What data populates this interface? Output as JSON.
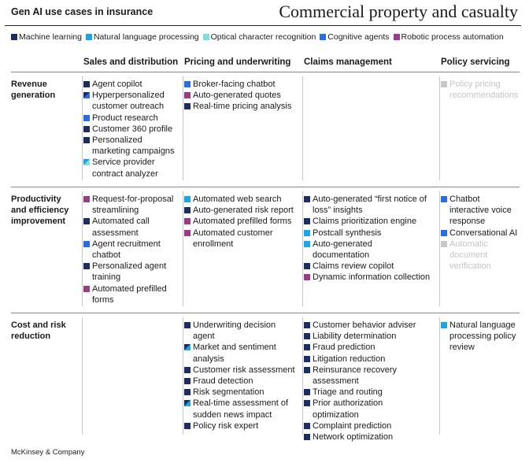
{
  "header": {
    "left_title": "Gen AI use cases in insurance",
    "right_title": "Commercial property and casualty"
  },
  "colors": {
    "machine_learning": "#1b2d63",
    "nlp": "#1fa5e6",
    "ocr": "#7fdfdc",
    "cognitive_agents": "#2a6de0",
    "rpa": "#9b3a86",
    "faded": "#c8c8c8"
  },
  "legend": [
    {
      "key": "machine_learning",
      "label": "Machine learning"
    },
    {
      "key": "nlp",
      "label": "Natural language processing"
    },
    {
      "key": "ocr",
      "label": "Optical character recognition"
    },
    {
      "key": "cognitive_agents",
      "label": "Cognitive agents"
    },
    {
      "key": "rpa",
      "label": "Robotic process automation"
    }
  ],
  "columns": [
    "Sales and distribution",
    "Pricing and underwriting",
    "Claims management",
    "Policy servicing"
  ],
  "rows": [
    {
      "label": "Revenue generation",
      "cells": [
        [
          {
            "text": "Agent copilot",
            "color": "machine_learning"
          },
          {
            "text": "Hyperpersonalized customer outreach",
            "color": "machine_learning",
            "split": "cognitive_agents"
          },
          {
            "text": "Product research",
            "color": "cognitive_agents"
          },
          {
            "text": "Customer 360 profile",
            "color": "machine_learning"
          },
          {
            "text": "Personalized marketing campaigns",
            "color": "machine_learning"
          },
          {
            "text": "Service provider contract analyzer",
            "color": "nlp",
            "split": "ocr"
          }
        ],
        [
          {
            "text": "Broker-facing chatbot",
            "color": "cognitive_agents"
          },
          {
            "text": "Auto-generated quotes",
            "color": "rpa"
          },
          {
            "text": "Real-time pricing analysis",
            "color": "machine_learning"
          }
        ],
        [],
        [
          {
            "text": "Policy pricing recommendations",
            "color": "faded",
            "faded": true
          }
        ]
      ]
    },
    {
      "label": "Productivity and efficiency improvement",
      "cells": [
        [
          {
            "text": "Request-for-proposal streamlining",
            "color": "rpa"
          },
          {
            "text": "Automated call assessment",
            "color": "machine_learning"
          },
          {
            "text": "Agent recruitment chatbot",
            "color": "cognitive_agents"
          },
          {
            "text": "Personalized agent training",
            "color": "machine_learning"
          },
          {
            "text": "Automated prefilled forms",
            "color": "rpa"
          }
        ],
        [
          {
            "text": "Automated web search",
            "color": "nlp"
          },
          {
            "text": "Auto-generated risk report",
            "color": "machine_learning"
          },
          {
            "text": "Automated prefilled forms",
            "color": "rpa"
          },
          {
            "text": "Automated customer enrollment",
            "color": "rpa"
          }
        ],
        [
          {
            "text": "Auto-generated “first notice of loss” insights",
            "color": "machine_learning"
          },
          {
            "text": "Claims prioritization engine",
            "color": "machine_learning"
          },
          {
            "text": "Postcall synthesis",
            "color": "nlp"
          },
          {
            "text": "Auto-generated documentation",
            "color": "nlp"
          },
          {
            "text": "Claims review copilot",
            "color": "machine_learning"
          },
          {
            "text": "Dynamic information collection",
            "color": "rpa"
          }
        ],
        [
          {
            "text": "Chatbot interactive voice response",
            "color": "cognitive_agents"
          },
          {
            "text": "Conversational AI",
            "color": "cognitive_agents"
          },
          {
            "text": "Automatic document verification",
            "color": "faded",
            "faded": true
          }
        ]
      ]
    },
    {
      "label": "Cost and risk reduction",
      "cells": [
        [],
        [
          {
            "text": "Underwriting decision agent",
            "color": "machine_learning"
          },
          {
            "text": "Market and sentiment analysis",
            "color": "machine_learning",
            "split": "nlp"
          },
          {
            "text": "Customer risk assessment",
            "color": "machine_learning"
          },
          {
            "text": "Fraud detection",
            "color": "machine_learning"
          },
          {
            "text": "Risk segmentation",
            "color": "machine_learning"
          },
          {
            "text": "Real-time assessment of sudden news impact",
            "color": "machine_learning",
            "split": "nlp"
          },
          {
            "text": "Policy risk expert",
            "color": "machine_learning"
          }
        ],
        [
          {
            "text": "Customer behavior adviser",
            "color": "machine_learning"
          },
          {
            "text": "Liability determination",
            "color": "machine_learning"
          },
          {
            "text": "Fraud prediction",
            "color": "machine_learning"
          },
          {
            "text": "Litigation reduction",
            "color": "machine_learning"
          },
          {
            "text": "Reinsurance recovery assessment",
            "color": "machine_learning"
          },
          {
            "text": "Triage and routing",
            "color": "machine_learning"
          },
          {
            "text": "Prior authorization optimization",
            "color": "machine_learning"
          },
          {
            "text": "Complaint prediction",
            "color": "machine_learning"
          },
          {
            "text": "Network optimization",
            "color": "machine_learning"
          }
        ],
        [
          {
            "text": "Natural language processing policy review",
            "color": "nlp"
          }
        ]
      ]
    }
  ],
  "footer": "McKinsey & Company"
}
